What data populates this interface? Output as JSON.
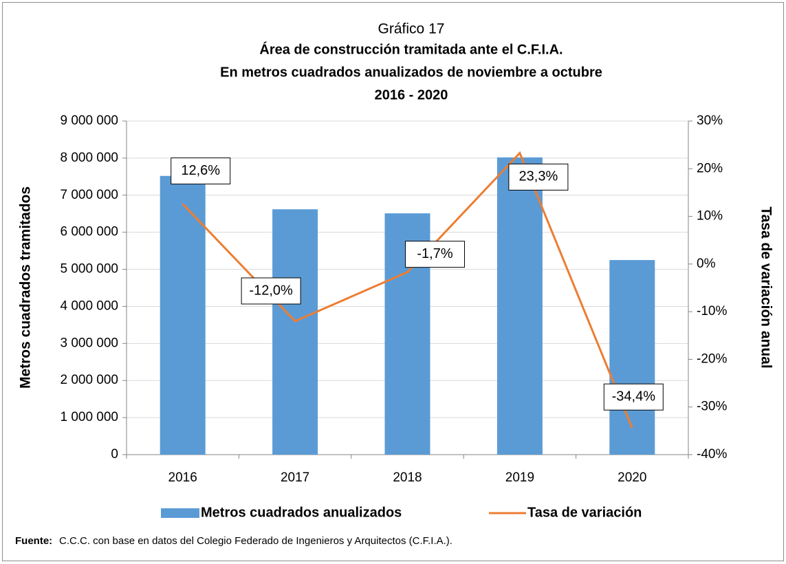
{
  "chart_data": {
    "type": "bar_line",
    "title": "Gráfico 17",
    "subtitle": [
      "Área de construcción tramitada ante el C.F.I.A.",
      "En metros cuadrados anualizados de noviembre a octubre",
      "2016 - 2020"
    ],
    "categories": [
      "2016",
      "2017",
      "2018",
      "2019",
      "2020"
    ],
    "series": [
      {
        "name": "Metros cuadrados anualizados",
        "type": "bar",
        "color": "#5b9bd5",
        "values": [
          7520000,
          6620000,
          6510000,
          8020000,
          5250000
        ]
      },
      {
        "name": "Tasa de variación",
        "type": "line",
        "axis": "y2",
        "color": "#ed7d31",
        "values": [
          12.6,
          -12.0,
          -1.7,
          23.3,
          -34.4
        ],
        "value_labels": [
          "12,6%",
          "-12,0%",
          "-1,7%",
          "23,3%",
          "-34,4%"
        ]
      }
    ],
    "ylabel": "Metros cuadrados tramitados",
    "y2label": "Tasa de variación anual",
    "ylim": [
      0,
      9000000
    ],
    "yticks": [
      0,
      {
        "value": 1000000,
        "label": "1 000 000"
      },
      {
        "value": 2000000,
        "label": "2 000 000"
      },
      {
        "value": 3000000,
        "label": "3 000 000"
      },
      {
        "value": 4000000,
        "label": "4 000 000"
      },
      {
        "value": 5000000,
        "label": "5 000 000"
      },
      {
        "value": 6000000,
        "label": "6 000 000"
      },
      {
        "value": 7000000,
        "label": "7 000 000"
      },
      {
        "value": 8000000,
        "label": "8 000 000"
      },
      {
        "value": 9000000,
        "label": "9 000 000"
      }
    ],
    "y2lim": [
      -40,
      30
    ],
    "y2ticks": [
      {
        "value": -40,
        "label": "-40%"
      },
      {
        "value": -30,
        "label": "-30%"
      },
      {
        "value": -20,
        "label": "-20%"
      },
      {
        "value": -10,
        "label": "-10%"
      },
      {
        "value": 0,
        "label": "0%"
      },
      {
        "value": 10,
        "label": "10%"
      },
      {
        "value": 20,
        "label": "20%"
      },
      {
        "value": 30,
        "label": "30%"
      }
    ],
    "grid": true,
    "legend": "bottom",
    "source_label": "Fuente:",
    "source": "C.C.C. con base en datos del Colegio Federado de Ingenieros y Arquitectos (C.F.I.A.)."
  }
}
